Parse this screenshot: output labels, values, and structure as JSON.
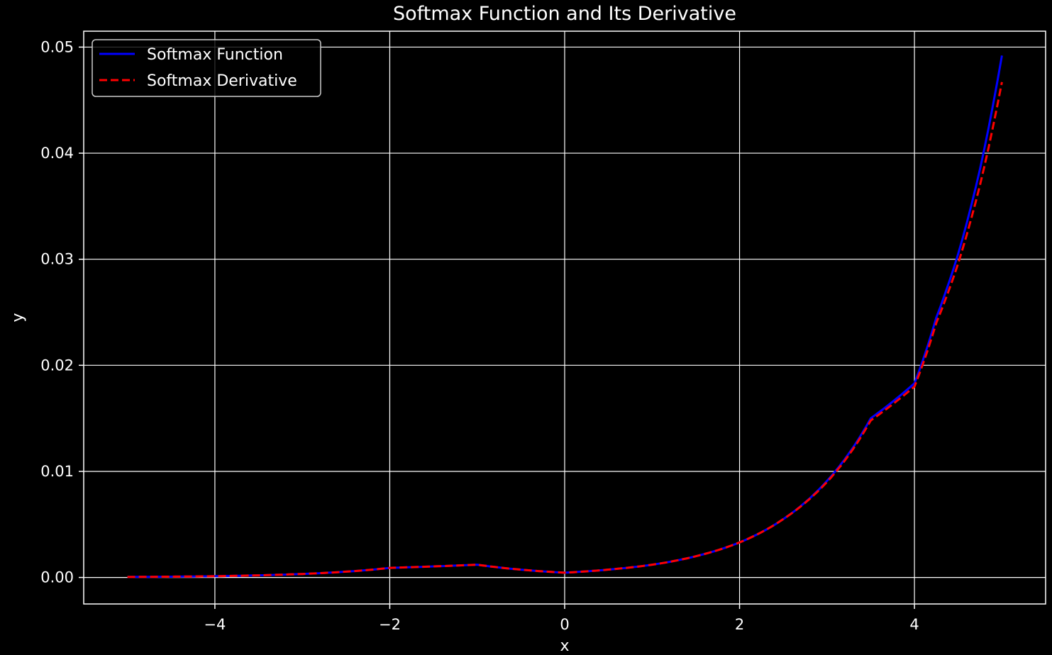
{
  "chart_data": {
    "type": "line",
    "title": "Softmax Function and Its Derivative",
    "xlabel": "x",
    "ylabel": "y",
    "xlim": [
      -5.5,
      5.5
    ],
    "ylim": [
      -0.0025,
      0.0515
    ],
    "xticks": [
      -4,
      -2,
      0,
      2,
      4
    ],
    "xtick_labels": [
      "−4",
      "−2",
      "0",
      "2",
      "4"
    ],
    "yticks": [
      0.0,
      0.01,
      0.02,
      0.03,
      0.04,
      0.05
    ],
    "ytick_labels": [
      "0.00",
      "0.01",
      "0.02",
      "0.03",
      "0.04",
      "0.05"
    ],
    "grid": true,
    "legend_position": "top-left",
    "background": "#000000",
    "series": [
      {
        "name": "Softmax Function",
        "color": "#0000ff",
        "style": "solid",
        "x": [
          -5,
          -4,
          -3,
          -2,
          -1,
          0,
          0.5,
          1,
          1.5,
          2,
          2.5,
          3,
          3.5,
          4,
          4.25,
          4.5,
          4.75,
          5
        ],
        "y": [
          4.5e-05,
          0.00012,
          0.00033,
          0.0009,
          0.0012,
          0.00045,
          0.00074,
          0.0012,
          0.002,
          0.0033,
          0.0055,
          0.0091,
          0.015,
          0.0183,
          0.0245,
          0.0305,
          0.0385,
          0.0492
        ]
      },
      {
        "name": "Softmax Derivative",
        "color": "#ff0000",
        "style": "dashed",
        "x": [
          -5,
          -4,
          -3,
          -2,
          -1,
          0,
          0.5,
          1,
          1.5,
          2,
          2.5,
          3,
          3.5,
          4,
          4.25,
          4.5,
          4.75,
          5
        ],
        "y": [
          4.5e-05,
          0.00012,
          0.00033,
          0.0009,
          0.0012,
          0.00045,
          0.00074,
          0.0012,
          0.002,
          0.0033,
          0.0055,
          0.009,
          0.0148,
          0.018,
          0.024,
          0.0296,
          0.037,
          0.0467
        ]
      }
    ]
  }
}
